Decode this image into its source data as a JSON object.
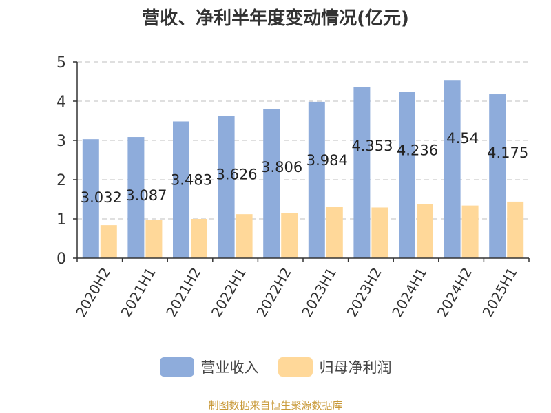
{
  "title": "营收、净利半年度变动情况(亿元)",
  "source": "制图数据来自恒生聚源数据库",
  "colors": {
    "revenue": "#8eacdb",
    "net_profit": "#ffd899",
    "grid": "#cccccc",
    "axis": "#333333",
    "title": "#333333",
    "source": "#c99a3a"
  },
  "chart_data": {
    "type": "bar",
    "title": "营收、净利半年度变动情况(亿元)",
    "categories": [
      "2020H2",
      "2021H1",
      "2021H2",
      "2022H1",
      "2022H2",
      "2023H1",
      "2023H2",
      "2024H1",
      "2024H2",
      "2025H1"
    ],
    "series": [
      {
        "name": "营业收入",
        "values": [
          3.032,
          3.087,
          3.483,
          3.626,
          3.806,
          3.984,
          4.353,
          4.236,
          4.54,
          4.175
        ],
        "labels": [
          "3.032",
          "3.087",
          "3.483",
          "3.626",
          "3.806",
          "3.984",
          "4.353",
          "4.236",
          "4.54",
          "4.175"
        ]
      },
      {
        "name": "归母净利润",
        "values": [
          0.84,
          0.98,
          1.0,
          1.12,
          1.15,
          1.31,
          1.29,
          1.38,
          1.34,
          1.44
        ]
      }
    ],
    "ylim": [
      0,
      5
    ],
    "yticks": [
      "0",
      "1",
      "2",
      "3",
      "4",
      "5"
    ],
    "grid": true,
    "legend": "bottom"
  }
}
